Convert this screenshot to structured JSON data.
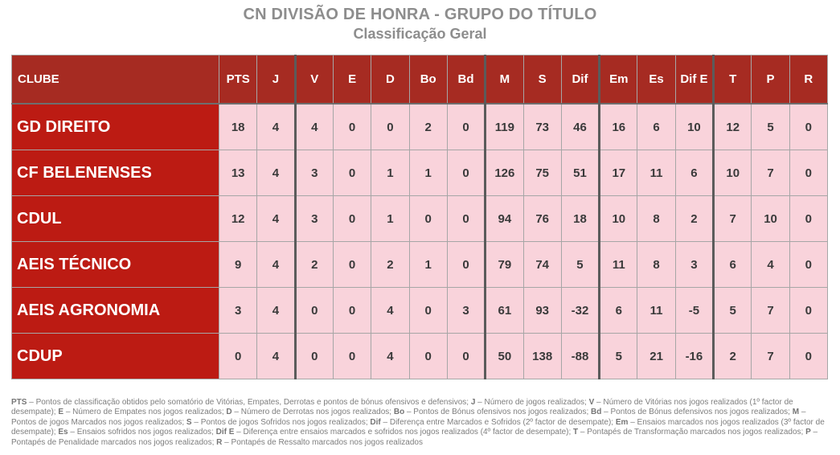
{
  "title": "CN DIVISÃO DE HONRA - GRUPO DO TÍTULO",
  "subtitle": "Classificação Geral",
  "colors": {
    "header_bg": "#a62b22",
    "club_cell_bg": "#bc1b13",
    "value_cell_bg": "#f9d3db",
    "header_text": "#ffffff",
    "value_text": "#3a3a3a",
    "title_text": "#8d8d8d",
    "legend_text": "#7e7e7e",
    "thick_group_border": "#5b5b5b",
    "thin_border": "#a6a6a6"
  },
  "ui": {
    "table": {
      "club_column_header": "CLUBE",
      "columns": [
        {
          "label": "PTS",
          "group_start": false
        },
        {
          "label": "J",
          "group_start": false
        },
        {
          "label": "V",
          "group_start": true
        },
        {
          "label": "E",
          "group_start": false
        },
        {
          "label": "D",
          "group_start": false
        },
        {
          "label": "Bo",
          "group_start": false
        },
        {
          "label": "Bd",
          "group_start": false
        },
        {
          "label": "M",
          "group_start": true
        },
        {
          "label": "S",
          "group_start": false
        },
        {
          "label": "Dif",
          "group_start": false
        },
        {
          "label": "Em",
          "group_start": true
        },
        {
          "label": "Es",
          "group_start": false
        },
        {
          "label": "Dif E",
          "group_start": false
        },
        {
          "label": "T",
          "group_start": true
        },
        {
          "label": "P",
          "group_start": false
        },
        {
          "label": "R",
          "group_start": false
        }
      ],
      "rows": [
        {
          "club": "GD DIREITO",
          "values": [
            "18",
            "4",
            "4",
            "0",
            "0",
            "2",
            "0",
            "119",
            "73",
            "46",
            "16",
            "6",
            "10",
            "12",
            "5",
            "0"
          ]
        },
        {
          "club": "CF BELENENSES",
          "values": [
            "13",
            "4",
            "3",
            "0",
            "1",
            "1",
            "0",
            "126",
            "75",
            "51",
            "17",
            "11",
            "6",
            "10",
            "7",
            "0"
          ]
        },
        {
          "club": "CDUL",
          "values": [
            "12",
            "4",
            "3",
            "0",
            "1",
            "0",
            "0",
            "94",
            "76",
            "18",
            "10",
            "8",
            "2",
            "7",
            "10",
            "0"
          ]
        },
        {
          "club": "AEIS TÉCNICO",
          "values": [
            "9",
            "4",
            "2",
            "0",
            "2",
            "1",
            "0",
            "79",
            "74",
            "5",
            "11",
            "8",
            "3",
            "6",
            "4",
            "0"
          ]
        },
        {
          "club": "AEIS AGRONOMIA",
          "values": [
            "3",
            "4",
            "0",
            "0",
            "4",
            "0",
            "3",
            "61",
            "93",
            "-32",
            "6",
            "11",
            "-5",
            "5",
            "7",
            "0"
          ]
        },
        {
          "club": "CDUP",
          "values": [
            "0",
            "4",
            "0",
            "0",
            "4",
            "0",
            "0",
            "50",
            "138",
            "-88",
            "5",
            "21",
            "-16",
            "2",
            "7",
            "0"
          ]
        }
      ]
    },
    "legend": {
      "items": [
        {
          "abbr": "PTS",
          "text": " – Pontos de classificação obtidos pelo somatório de Vitórias, Empates, Derrotas e pontos de bónus ofensivos e defensivos;  "
        },
        {
          "abbr": "J",
          "text": " – Número de jogos realizados; "
        },
        {
          "abbr": "V",
          "text": " – Número de Vitórias nos jogos realizados (1º factor de desempate); "
        },
        {
          "abbr": "E",
          "text": " – Número de Empates nos jogos realizados; "
        },
        {
          "abbr": "D",
          "text": " – Número de Derrotas nos jogos realizados; "
        },
        {
          "abbr": "Bo",
          "text": " – Pontos de Bónus ofensivos nos jogos realizados; "
        },
        {
          "abbr": "Bd",
          "text": " – Pontos de Bónus defensivos nos jogos realizados; "
        },
        {
          "abbr": "M",
          "text": " – Pontos de jogos Marcados nos jogos realizados; "
        },
        {
          "abbr": "S",
          "text": " – Pontos de jogos Sofridos nos jogos realizados; "
        },
        {
          "abbr": "Dif",
          "text": " – Diferença entre Marcados e Sofridos (2º factor de desempate); "
        },
        {
          "abbr": "Em",
          "text": " – Ensaios marcados nos jogos realizados (3º factor de desempate); "
        },
        {
          "abbr": "Es",
          "text": " – Ensaios sofridos nos jogos realizados; "
        },
        {
          "abbr": "Dif E",
          "text": " – Diferença entre ensaios marcados e sofridos nos jogos realizados (4º factor de desempate); "
        },
        {
          "abbr": "T",
          "text": " – Pontapés de Transformação marcados nos jogos realizados; "
        },
        {
          "abbr": "P",
          "text": " – Pontapés de Penalidade marcados nos jogos realizados; "
        },
        {
          "abbr": "R",
          "text": " – Pontapés de Ressalto marcados nos jogos realizados"
        }
      ]
    }
  },
  "chart_data": {
    "type": "table",
    "title": "CN DIVISÃO DE HONRA - GRUPO DO TÍTULO",
    "subtitle": "Classificação Geral",
    "columns": [
      "CLUBE",
      "PTS",
      "J",
      "V",
      "E",
      "D",
      "Bo",
      "Bd",
      "M",
      "S",
      "Dif",
      "Em",
      "Es",
      "Dif E",
      "T",
      "P",
      "R"
    ],
    "rows": [
      [
        "GD DIREITO",
        18,
        4,
        4,
        0,
        0,
        2,
        0,
        119,
        73,
        46,
        16,
        6,
        10,
        12,
        5,
        0
      ],
      [
        "CF BELENENSES",
        13,
        4,
        3,
        0,
        1,
        1,
        0,
        126,
        75,
        51,
        17,
        11,
        6,
        10,
        7,
        0
      ],
      [
        "CDUL",
        12,
        4,
        3,
        0,
        1,
        0,
        0,
        94,
        76,
        18,
        10,
        8,
        2,
        7,
        10,
        0
      ],
      [
        "AEIS TÉCNICO",
        9,
        4,
        2,
        0,
        2,
        1,
        0,
        79,
        74,
        5,
        11,
        8,
        3,
        6,
        4,
        0
      ],
      [
        "AEIS AGRONOMIA",
        3,
        4,
        0,
        0,
        4,
        0,
        3,
        61,
        93,
        -32,
        6,
        11,
        -5,
        5,
        7,
        0
      ],
      [
        "CDUP",
        0,
        4,
        0,
        0,
        4,
        0,
        0,
        50,
        138,
        -88,
        5,
        21,
        -16,
        2,
        7,
        0
      ]
    ]
  }
}
